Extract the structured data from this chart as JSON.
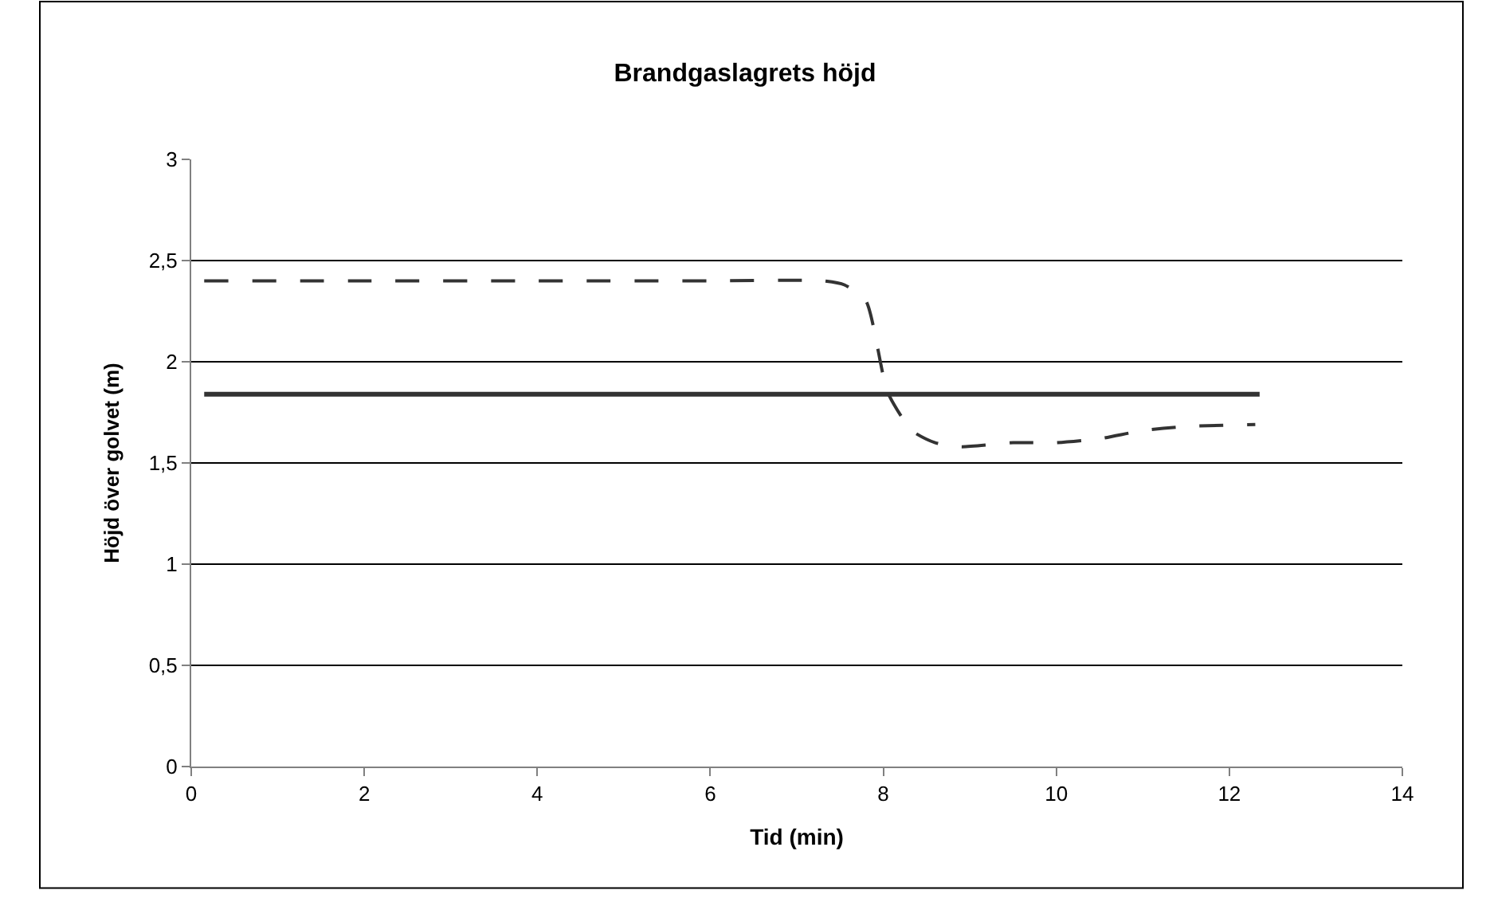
{
  "chart_data": {
    "type": "line",
    "title": "Brandgaslagrets höjd",
    "xlabel": "Tid (min)",
    "ylabel": "Höjd över golvet (m)",
    "series": [
      {
        "color": "#333333",
        "line_style": "solid",
        "x": [
          0.15,
          12.35
        ],
        "values": [
          1.84,
          1.84
        ]
      },
      {
        "color": "#333333",
        "line_style": "dashed",
        "x": [
          0.15,
          2,
          4,
          6,
          7.3,
          7.55,
          7.8,
          8.05,
          8.33,
          8.6,
          8.9,
          9.5,
          10,
          10.5,
          11,
          11.5,
          12.3
        ],
        "values": [
          2.4,
          2.4,
          2.4,
          2.4,
          2.4,
          2.38,
          2.3,
          1.85,
          1.66,
          1.6,
          1.58,
          1.6,
          1.6,
          1.62,
          1.66,
          1.68,
          1.69
        ]
      }
    ],
    "xlim": [
      0,
      14
    ],
    "xticks": [
      0,
      2,
      4,
      6,
      8,
      10,
      12,
      14
    ],
    "ylim": [
      0,
      3
    ],
    "yticks": [
      0,
      {
        "value": 0.5,
        "label": "0,5"
      },
      1,
      {
        "value": 1.5,
        "label": "1,5"
      },
      2,
      {
        "value": 2.5,
        "label": "2,5"
      },
      3
    ],
    "grid": "y",
    "marker": "none"
  }
}
